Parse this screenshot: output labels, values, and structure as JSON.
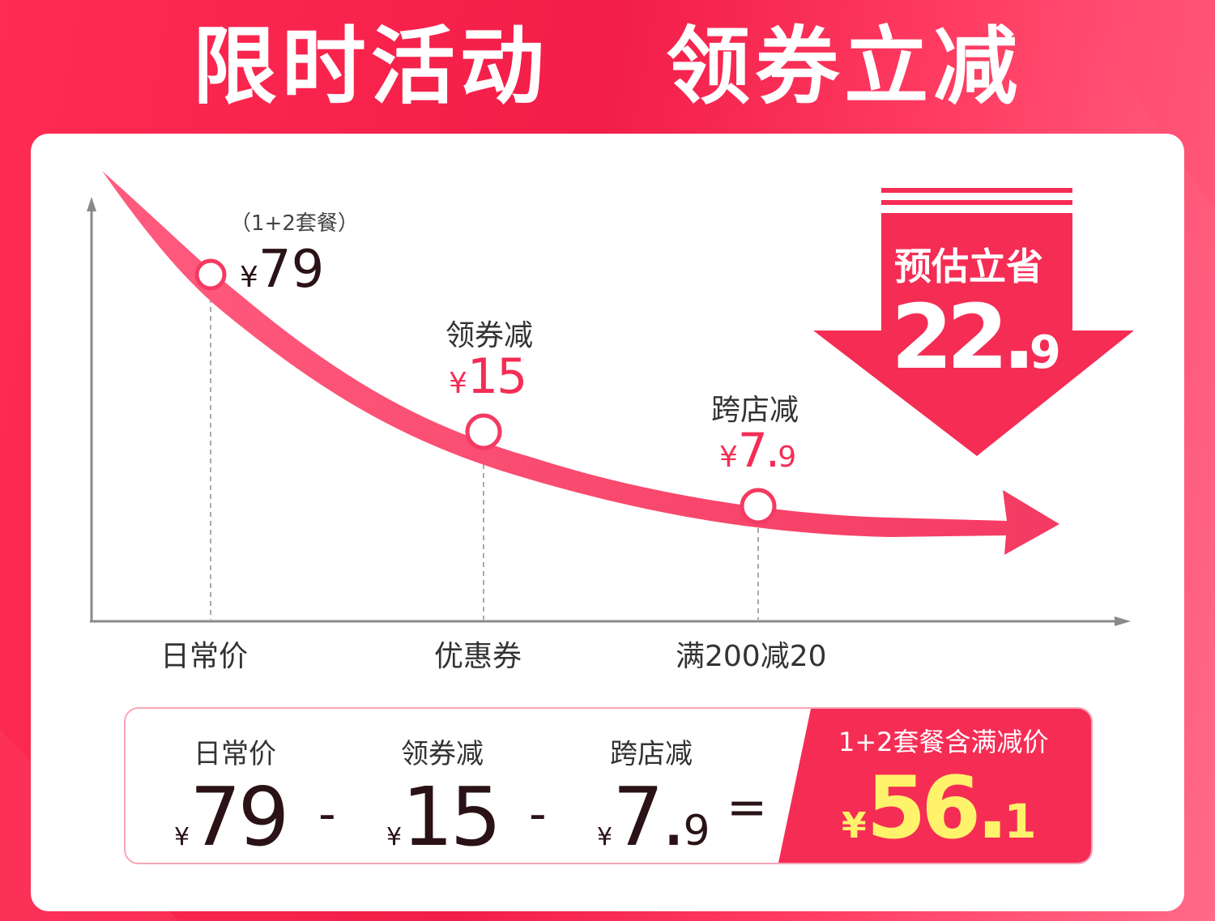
{
  "headline": {
    "part1": "限时活动",
    "part2": "领券立减"
  },
  "chart": {
    "points": [
      {
        "note": "（1+2套餐）",
        "label": "",
        "currency": "¥",
        "value_main": "79",
        "value_dec": "",
        "x_label": "日常价"
      },
      {
        "note": "",
        "label": "领券减",
        "currency": "¥",
        "value_main": "15",
        "value_dec": "",
        "x_label": "优惠券"
      },
      {
        "note": "",
        "label": "跨店减",
        "currency": "¥",
        "value_main": "7.",
        "value_dec": "9",
        "x_label": "满200减20"
      }
    ]
  },
  "savings": {
    "title": "预估立省",
    "value_main": "22.",
    "value_dec": "9"
  },
  "summary": {
    "items": [
      {
        "label": "日常价",
        "currency": "¥",
        "value_main": "79",
        "value_dec": ""
      },
      {
        "label": "领券减",
        "currency": "¥",
        "value_main": "15",
        "value_dec": ""
      },
      {
        "label": "跨店减",
        "currency": "¥",
        "value_main": "7.",
        "value_dec": "9"
      }
    ],
    "op_minus": "-",
    "op_equals": "=",
    "final": {
      "label": "1+2套餐含满减价",
      "currency": "¥",
      "value_main": "56.",
      "value_dec": "1"
    }
  },
  "colors": {
    "accent": "#f52d55",
    "highlight": "#fff36b",
    "text_dark": "#2a1216"
  }
}
